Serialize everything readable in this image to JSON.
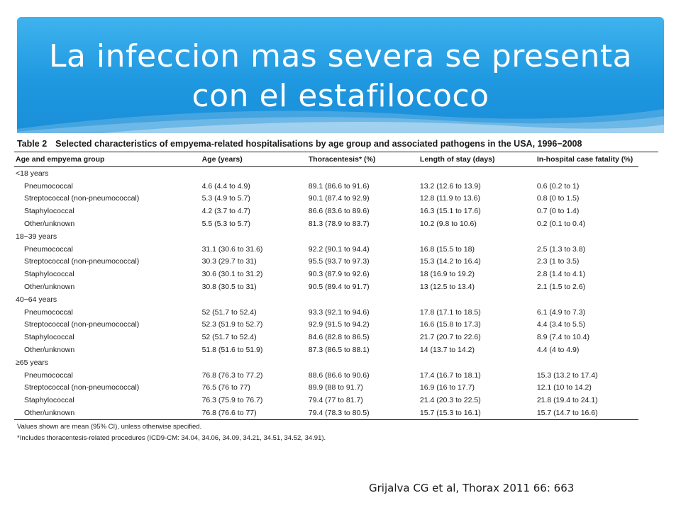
{
  "slide": {
    "title": "La infeccion mas severa se presenta con el estafilococo",
    "citation": "Grijalva CG et al,  Thorax 2011 66: 663"
  },
  "table": {
    "label": "Table 2",
    "caption": "Selected characteristics of empyema-related hospitalisations by age group and associated pathogens in the USA, 1996−2008",
    "headers": [
      "Age and empyema group",
      "Age (years)",
      "Thoracentesis* (%)",
      "Length of stay (days)",
      "In-hospital case fatality (%)"
    ],
    "groups": [
      {
        "label": "<18 years",
        "rows": [
          [
            "Pneumococcal",
            "4.6 (4.4 to 4.9)",
            "89.1 (86.6 to 91.6)",
            "13.2 (12.6 to 13.9)",
            "0.6 (0.2 to 1)"
          ],
          [
            "Streptococcal (non-pneumococcal)",
            "5.3 (4.9 to 5.7)",
            "90.1 (87.4 to 92.9)",
            "12.8 (11.9 to 13.6)",
            "0.8 (0 to 1.5)"
          ],
          [
            "Staphylococcal",
            "4.2 (3.7 to 4.7)",
            "86.6 (83.6 to 89.6)",
            "16.3 (15.1 to 17.6)",
            "0.7 (0 to 1.4)"
          ],
          [
            "Other/unknown",
            "5.5 (5.3 to 5.7)",
            "81.3 (78.9 to 83.7)",
            "10.2 (9.8 to 10.6)",
            "0.2 (0.1 to 0.4)"
          ]
        ]
      },
      {
        "label": "18−39 years",
        "rows": [
          [
            "Pneumococcal",
            "31.1 (30.6 to 31.6)",
            "92.2 (90.1 to 94.4)",
            "16.8 (15.5 to 18)",
            "2.5 (1.3 to 3.8)"
          ],
          [
            "Streptococcal (non-pneumococcal)",
            "30.3 (29.7 to 31)",
            "95.5 (93.7 to 97.3)",
            "15.3 (14.2 to 16.4)",
            "2.3 (1 to 3.5)"
          ],
          [
            "Staphylococcal",
            "30.6 (30.1 to 31.2)",
            "90.3 (87.9 to 92.6)",
            "18 (16.9 to 19.2)",
            "2.8 (1.4 to 4.1)"
          ],
          [
            "Other/unknown",
            "30.8 (30.5 to 31)",
            "90.5 (89.4 to 91.7)",
            "13 (12.5 to 13.4)",
            "2.1 (1.5 to 2.6)"
          ]
        ]
      },
      {
        "label": "40−64 years",
        "rows": [
          [
            "Pneumococcal",
            "52 (51.7 to 52.4)",
            "93.3 (92.1 to 94.6)",
            "17.8 (17.1 to 18.5)",
            "6.1 (4.9 to 7.3)"
          ],
          [
            "Streptococcal (non-pneumococcal)",
            "52.3 (51.9 to 52.7)",
            "92.9 (91.5 to 94.2)",
            "16.6 (15.8 to 17.3)",
            "4.4 (3.4 to 5.5)"
          ],
          [
            "Staphylococcal",
            "52 (51.7 to 52.4)",
            "84.6 (82.8 to 86.5)",
            "21.7 (20.7 to 22.6)",
            "8.9 (7.4 to 10.4)"
          ],
          [
            "Other/unknown",
            "51.8 (51.6 to 51.9)",
            "87.3 (86.5 to 88.1)",
            "14 (13.7 to 14.2)",
            "4.4 (4 to 4.9)"
          ]
        ]
      },
      {
        "label": "≥65 years",
        "rows": [
          [
            "Pneumococcal",
            "76.8 (76.3 to 77.2)",
            "88.6 (86.6 to 90.6)",
            "17.4 (16.7 to 18.1)",
            "15.3 (13.2 to 17.4)"
          ],
          [
            "Streptococcal (non-pneumococcal)",
            "76.5 (76 to 77)",
            "89.9 (88 to 91.7)",
            "16.9 (16 to 17.7)",
            "12.1 (10 to 14.2)"
          ],
          [
            "Staphylococcal",
            "76.3 (75.9 to 76.7)",
            "79.4 (77 to 81.7)",
            "21.4 (20.3 to 22.5)",
            "21.8 (19.4 to 24.1)"
          ],
          [
            "Other/unknown",
            "76.8 (76.6 to 77)",
            "79.4 (78.3 to 80.5)",
            "15.7 (15.3 to 16.1)",
            "15.7 (14.7 to 16.6)"
          ]
        ]
      }
    ],
    "footnotes": [
      "Values shown are mean (95% CI), unless otherwise specified.",
      "*Includes thoracentesis-related procedures (ICD9-CM: 34.04, 34.06, 34.09, 34.21, 34.51, 34.52, 34.91)."
    ]
  }
}
